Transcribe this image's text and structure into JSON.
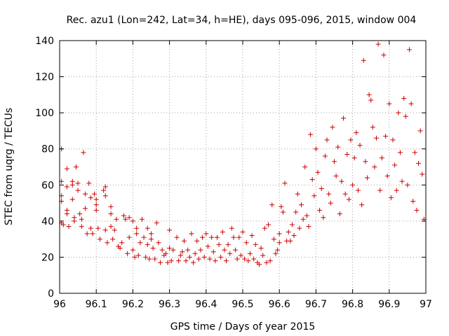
{
  "chart_data": {
    "type": "scatter",
    "title": "Rec. azu1 (Lon=242, Lat=34, h=HE), days 095-096, 2015, window 004",
    "xlabel": "GPS time / Days of year 2015",
    "ylabel": "STEC from uqrg / TECUs",
    "xlim": [
      96,
      97
    ],
    "ylim": [
      0,
      140
    ],
    "xticks": [
      96,
      96.1,
      96.2,
      96.3,
      96.4,
      96.5,
      96.6,
      96.7,
      96.8,
      96.9,
      97
    ],
    "xtick_labels": [
      "96",
      "96.1",
      "96.2",
      "96.3",
      "96.4",
      "96.5",
      "96.6",
      "96.7",
      "96.8",
      "96.9",
      "97"
    ],
    "yticks": [
      0,
      20,
      40,
      60,
      80,
      100,
      120,
      140
    ],
    "ytick_labels": [
      "0",
      "20",
      "40",
      "60",
      "80",
      "100",
      "120",
      "140"
    ],
    "grid": true,
    "marker": "plus",
    "marker_color": "#cc0000",
    "series": [
      {
        "name": "STEC",
        "points": [
          [
            96.005,
            80
          ],
          [
            96.005,
            62
          ],
          [
            96.005,
            54
          ],
          [
            96.005,
            51
          ],
          [
            96.005,
            39
          ],
          [
            96.01,
            38
          ],
          [
            96.02,
            69
          ],
          [
            96.02,
            59
          ],
          [
            96.02,
            46
          ],
          [
            96.02,
            44
          ],
          [
            96.025,
            37
          ],
          [
            96.035,
            62
          ],
          [
            96.035,
            60
          ],
          [
            96.035,
            52
          ],
          [
            96.04,
            42
          ],
          [
            96.04,
            40
          ],
          [
            96.045,
            70
          ],
          [
            96.05,
            61
          ],
          [
            96.05,
            57
          ],
          [
            96.055,
            44
          ],
          [
            96.06,
            41
          ],
          [
            96.06,
            37
          ],
          [
            96.065,
            78
          ],
          [
            96.07,
            55
          ],
          [
            96.07,
            47
          ],
          [
            96.075,
            33
          ],
          [
            96.08,
            61
          ],
          [
            96.085,
            53
          ],
          [
            96.085,
            36
          ],
          [
            96.09,
            33
          ],
          [
            96.095,
            55
          ],
          [
            96.1,
            52
          ],
          [
            96.1,
            49
          ],
          [
            96.1,
            46
          ],
          [
            96.105,
            36
          ],
          [
            96.11,
            30
          ],
          [
            96.12,
            57
          ],
          [
            96.125,
            59
          ],
          [
            96.125,
            54
          ],
          [
            96.125,
            35
          ],
          [
            96.13,
            28
          ],
          [
            96.14,
            48
          ],
          [
            96.14,
            37
          ],
          [
            96.14,
            44
          ],
          [
            96.145,
            30
          ],
          [
            96.15,
            35
          ],
          [
            96.155,
            41
          ],
          [
            96.16,
            26
          ],
          [
            96.165,
            25
          ],
          [
            96.17,
            28
          ],
          [
            96.175,
            43
          ],
          [
            96.18,
            41
          ],
          [
            96.185,
            22
          ],
          [
            96.19,
            42
          ],
          [
            96.19,
            31
          ],
          [
            96.2,
            40
          ],
          [
            96.2,
            24
          ],
          [
            96.205,
            20
          ],
          [
            96.21,
            36
          ],
          [
            96.21,
            33
          ],
          [
            96.215,
            21
          ],
          [
            96.22,
            28
          ],
          [
            96.225,
            41
          ],
          [
            96.23,
            31
          ],
          [
            96.235,
            20
          ],
          [
            96.24,
            36
          ],
          [
            96.24,
            27
          ],
          [
            96.245,
            19
          ],
          [
            96.25,
            33
          ],
          [
            96.25,
            30
          ],
          [
            96.255,
            25
          ],
          [
            96.26,
            19
          ],
          [
            96.265,
            39
          ],
          [
            96.27,
            28
          ],
          [
            96.275,
            17
          ],
          [
            96.28,
            24
          ],
          [
            96.285,
            21
          ],
          [
            96.29,
            22
          ],
          [
            96.295,
            17
          ],
          [
            96.3,
            35
          ],
          [
            96.3,
            25
          ],
          [
            96.305,
            18
          ],
          [
            96.31,
            24
          ],
          [
            96.32,
            31
          ],
          [
            96.325,
            18
          ],
          [
            96.33,
            21
          ],
          [
            96.335,
            23
          ],
          [
            96.34,
            29
          ],
          [
            96.345,
            18
          ],
          [
            96.35,
            24
          ],
          [
            96.355,
            20
          ],
          [
            96.36,
            33
          ],
          [
            96.365,
            17
          ],
          [
            96.37,
            22
          ],
          [
            96.375,
            29
          ],
          [
            96.38,
            19
          ],
          [
            96.385,
            24
          ],
          [
            96.39,
            31
          ],
          [
            96.395,
            20
          ],
          [
            96.4,
            33
          ],
          [
            96.405,
            26
          ],
          [
            96.41,
            19
          ],
          [
            96.415,
            31
          ],
          [
            96.42,
            23
          ],
          [
            96.425,
            18
          ],
          [
            96.43,
            31
          ],
          [
            96.435,
            27
          ],
          [
            96.44,
            20
          ],
          [
            96.445,
            34
          ],
          [
            96.45,
            24
          ],
          [
            96.455,
            18
          ],
          [
            96.46,
            27
          ],
          [
            96.465,
            22
          ],
          [
            96.47,
            36
          ],
          [
            96.475,
            31
          ],
          [
            96.48,
            24
          ],
          [
            96.485,
            19
          ],
          [
            96.49,
            31
          ],
          [
            96.495,
            21
          ],
          [
            96.5,
            34
          ],
          [
            96.505,
            19
          ],
          [
            96.51,
            28
          ],
          [
            96.515,
            18
          ],
          [
            96.52,
            22
          ],
          [
            96.525,
            32
          ],
          [
            96.53,
            19
          ],
          [
            96.535,
            27
          ],
          [
            96.54,
            17
          ],
          [
            96.545,
            16
          ],
          [
            96.55,
            25
          ],
          [
            96.555,
            21
          ],
          [
            96.56,
            36
          ],
          [
            96.565,
            17
          ],
          [
            96.57,
            38
          ],
          [
            96.575,
            18
          ],
          [
            96.58,
            49
          ],
          [
            96.585,
            30
          ],
          [
            96.59,
            22
          ],
          [
            96.595,
            24
          ],
          [
            96.6,
            33
          ],
          [
            96.6,
            28
          ],
          [
            96.605,
            48
          ],
          [
            96.61,
            45
          ],
          [
            96.615,
            61
          ],
          [
            96.62,
            29
          ],
          [
            96.625,
            34
          ],
          [
            96.63,
            29
          ],
          [
            96.635,
            38
          ],
          [
            96.64,
            32
          ],
          [
            96.645,
            45
          ],
          [
            96.65,
            55
          ],
          [
            96.655,
            36
          ],
          [
            96.66,
            49
          ],
          [
            96.665,
            41
          ],
          [
            96.67,
            70
          ],
          [
            96.675,
            43
          ],
          [
            96.68,
            37
          ],
          [
            96.685,
            88
          ],
          [
            96.69,
            63
          ],
          [
            96.695,
            54
          ],
          [
            96.7,
            80
          ],
          [
            96.705,
            67
          ],
          [
            96.71,
            46
          ],
          [
            96.715,
            58
          ],
          [
            96.72,
            42
          ],
          [
            96.725,
            76
          ],
          [
            96.73,
            85
          ],
          [
            96.735,
            55
          ],
          [
            96.74,
            50
          ],
          [
            96.745,
            92
          ],
          [
            96.75,
            73
          ],
          [
            96.755,
            65
          ],
          [
            96.76,
            81
          ],
          [
            96.765,
            44
          ],
          [
            96.77,
            62
          ],
          [
            96.775,
            97
          ],
          [
            96.78,
            55
          ],
          [
            96.785,
            77
          ],
          [
            96.79,
            52
          ],
          [
            96.795,
            85
          ],
          [
            96.8,
            60
          ],
          [
            96.805,
            75
          ],
          [
            96.81,
            89
          ],
          [
            96.815,
            57
          ],
          [
            96.82,
            82
          ],
          [
            96.825,
            49
          ],
          [
            96.83,
            129
          ],
          [
            96.835,
            73
          ],
          [
            96.84,
            64
          ],
          [
            96.845,
            110
          ],
          [
            96.85,
            107
          ],
          [
            96.855,
            92
          ],
          [
            96.86,
            70
          ],
          [
            96.865,
            86
          ],
          [
            96.87,
            138
          ],
          [
            96.875,
            57
          ],
          [
            96.88,
            75
          ],
          [
            96.885,
            132
          ],
          [
            96.89,
            87
          ],
          [
            96.895,
            65
          ],
          [
            96.9,
            105
          ],
          [
            96.905,
            53
          ],
          [
            96.91,
            85
          ],
          [
            96.915,
            71
          ],
          [
            96.92,
            57
          ],
          [
            96.925,
            100
          ],
          [
            96.93,
            78
          ],
          [
            96.935,
            62
          ],
          [
            96.94,
            108
          ],
          [
            96.945,
            98
          ],
          [
            96.95,
            60
          ],
          [
            96.955,
            135
          ],
          [
            96.96,
            105
          ],
          [
            96.965,
            51
          ],
          [
            96.97,
            78
          ],
          [
            96.975,
            46
          ],
          [
            96.98,
            72
          ],
          [
            96.985,
            90
          ],
          [
            96.99,
            66
          ],
          [
            96.995,
            41
          ]
        ]
      }
    ]
  }
}
